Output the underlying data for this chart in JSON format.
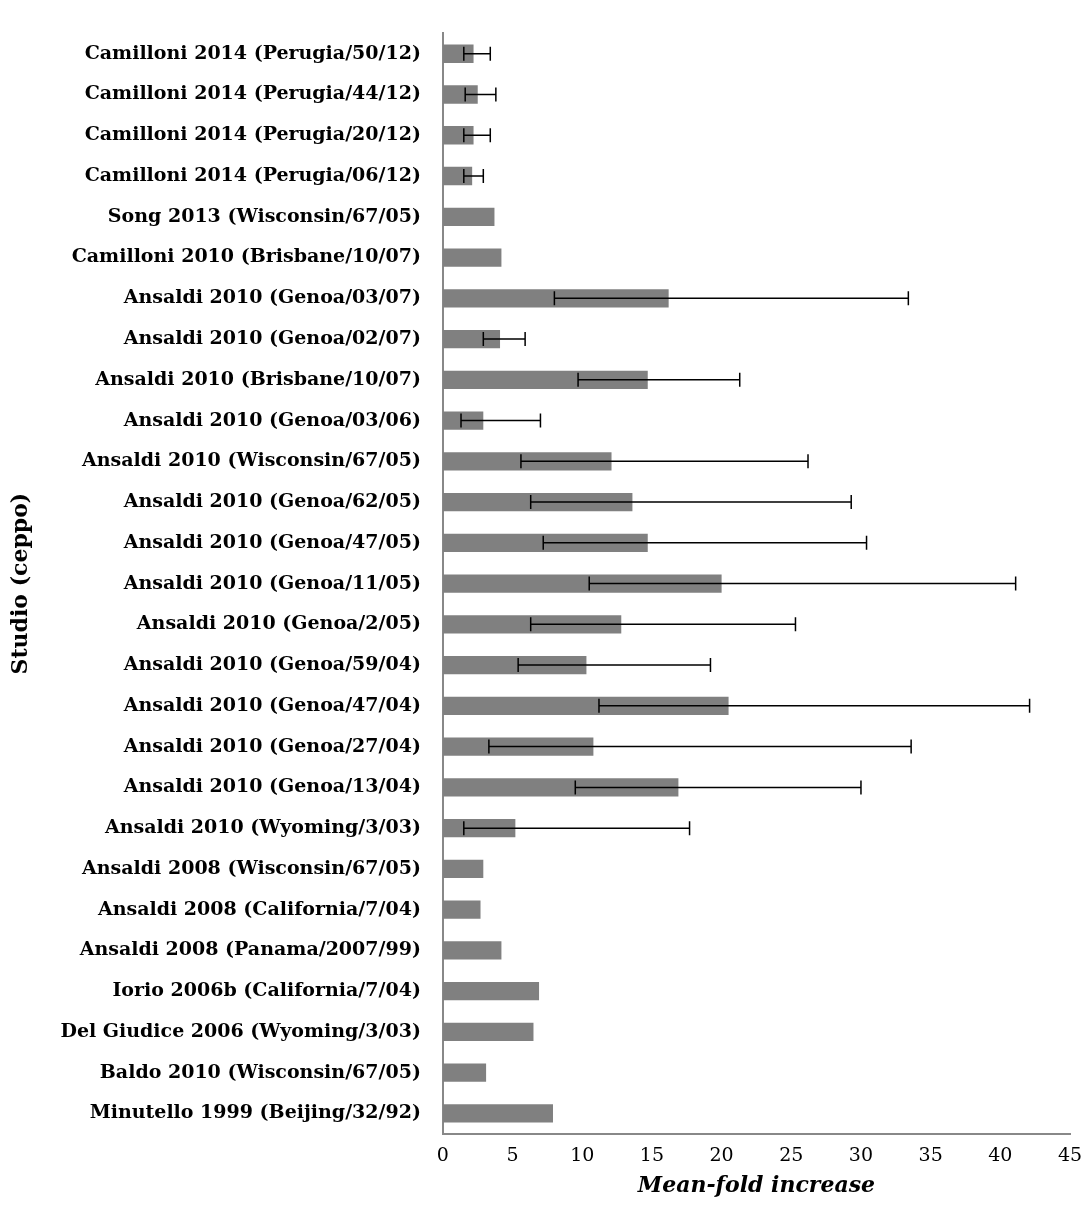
{
  "chart_data": {
    "type": "bar",
    "orientation": "horizontal",
    "xlabel": "Mean-fold increase",
    "ylabel": "Studio (ceppo)",
    "color": "#808080",
    "categories": [
      "Camilloni 2014 (Perugia/50/12)",
      "Camilloni 2014 (Perugia/44/12)",
      "Camilloni 2014 (Perugia/20/12)",
      "Camilloni 2014 (Perugia/06/12)",
      "Song 2013 (Wisconsin/67/05)",
      "Camilloni 2010 (Brisbane/10/07)",
      "Ansaldi 2010 (Genoa/03/07)",
      "Ansaldi 2010 (Genoa/02/07)",
      "Ansaldi 2010 (Brisbane/10/07)",
      "Ansaldi 2010 (Genoa/03/06)",
      "Ansaldi 2010 (Wisconsin/67/05)",
      "Ansaldi 2010 (Genoa/62/05)",
      "Ansaldi 2010 (Genoa/47/05)",
      "Ansaldi 2010 (Genoa/11/05)",
      "Ansaldi 2010 (Genoa/2/05)",
      "Ansaldi 2010 (Genoa/59/04)",
      "Ansaldi 2010 (Genoa/47/04)",
      "Ansaldi 2010 (Genoa/27/04)",
      "Ansaldi 2010 (Genoa/13/04)",
      "Ansaldi 2010 (Wyoming/3/03)",
      "Ansaldi 2008 (Wisconsin/67/05)",
      "Ansaldi 2008 (California/7/04)",
      "Ansaldi 2008 (Panama/2007/99)",
      "Iorio 2006b (California/7/04)",
      "Del Giudice 2006 (Wyoming/3/03)",
      "Baldo 2010 (Wisconsin/67/05)",
      "Minutello 1999 (Beijing/32/92)"
    ],
    "values": [
      2.2,
      2.5,
      2.2,
      2.1,
      3.7,
      4.2,
      16.2,
      4.1,
      14.7,
      2.9,
      12.1,
      13.6,
      14.7,
      20.0,
      12.8,
      10.3,
      20.5,
      10.8,
      16.9,
      5.2,
      2.9,
      2.7,
      4.2,
      6.9,
      6.5,
      3.1,
      7.9
    ],
    "errors": [
      [
        1.5,
        3.4
      ],
      [
        1.6,
        3.8
      ],
      [
        1.5,
        3.4
      ],
      [
        1.5,
        2.9
      ],
      null,
      null,
      [
        8.0,
        33.4
      ],
      [
        2.9,
        5.9
      ],
      [
        9.7,
        21.3
      ],
      [
        1.3,
        7.0
      ],
      [
        5.6,
        26.2
      ],
      [
        6.3,
        29.3
      ],
      [
        7.2,
        30.4
      ],
      [
        10.5,
        41.1
      ],
      [
        6.3,
        25.3
      ],
      [
        5.4,
        19.2
      ],
      [
        11.2,
        42.1
      ],
      [
        3.3,
        33.6
      ],
      [
        9.5,
        30.0
      ],
      [
        1.5,
        17.7
      ],
      null,
      null,
      null,
      null,
      null,
      null,
      null
    ],
    "xlim": [
      0,
      45
    ],
    "xticks": [
      0,
      5,
      10,
      15,
      20,
      25,
      30,
      35,
      40,
      45
    ],
    "grid": false,
    "legend": false
  }
}
